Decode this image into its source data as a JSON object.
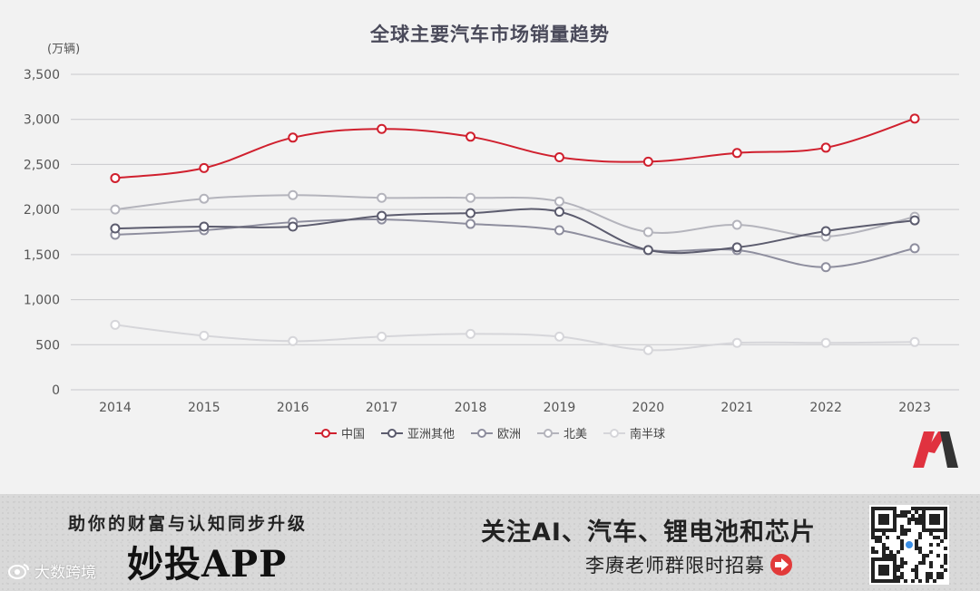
{
  "chart_data": {
    "type": "line",
    "title": "全球主要汽车市场销量趋势",
    "unit": "(万辆)",
    "categories": [
      "2014",
      "2015",
      "2016",
      "2017",
      "2018",
      "2019",
      "2020",
      "2021",
      "2022",
      "2023"
    ],
    "ylim": [
      0,
      3500
    ],
    "yticks": [
      0,
      500,
      1000,
      1500,
      2000,
      2500,
      3000,
      3500
    ],
    "ytick_labels": [
      "0",
      "500",
      "1,000",
      "1,500",
      "2,000",
      "2,500",
      "3,000",
      "3,500"
    ],
    "grid": true,
    "legend_position": "bottom",
    "series": [
      {
        "name": "中国",
        "color": "#d0202e",
        "values": [
          2349,
          2460,
          2798,
          2894,
          2808,
          2580,
          2531,
          2627,
          2686,
          3009
        ]
      },
      {
        "name": "亚洲其他",
        "color": "#5c5c6e",
        "values": [
          1790,
          1810,
          1810,
          1930,
          1960,
          1975,
          1550,
          1580,
          1760,
          1880
        ]
      },
      {
        "name": "欧洲",
        "color": "#8e8e9e",
        "values": [
          1720,
          1770,
          1860,
          1890,
          1840,
          1770,
          1550,
          1550,
          1360,
          1570
        ]
      },
      {
        "name": "北美",
        "color": "#b4b4bc",
        "values": [
          2000,
          2120,
          2160,
          2130,
          2130,
          2090,
          1750,
          1830,
          1700,
          1920
        ]
      },
      {
        "name": "南半球",
        "color": "#d6d6da",
        "values": [
          720,
          600,
          540,
          590,
          620,
          590,
          440,
          520,
          520,
          530
        ]
      }
    ]
  },
  "banner": {
    "slogan": "助你的财富与认知同步升级",
    "app_name": "妙投APP",
    "watermark": "大数跨境",
    "follow_text": "关注AI、汽车、锂电池和芯片",
    "recruit_text": "李赓老师群限时招募"
  },
  "colors": {
    "grid": "#c8c8cc",
    "axis_text": "#555555",
    "title": "#4a4a5a",
    "logo_red": "#e0323f",
    "logo_dark": "#333333"
  },
  "icons": {
    "logo": "m-logo-icon",
    "arrow": "arrow-right-circle-icon",
    "qr": "qr-code-icon",
    "watermark": "weibo-eye-icon"
  }
}
